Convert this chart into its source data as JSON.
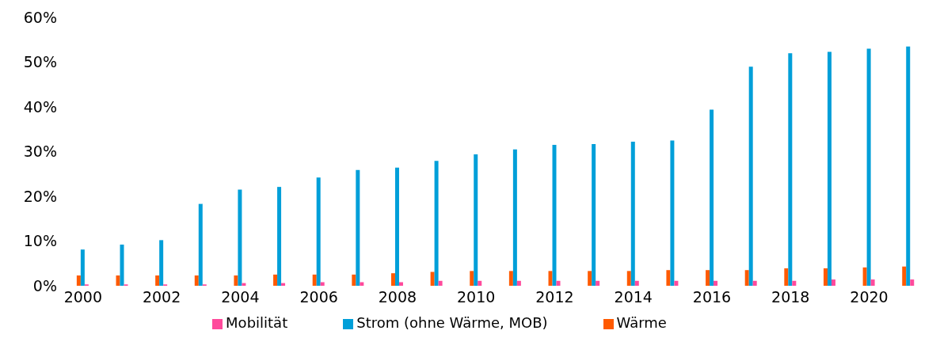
{
  "chart_data": {
    "type": "bar",
    "categories": [
      "2000",
      null,
      "2002",
      null,
      "2004",
      null,
      "2006",
      null,
      "2008",
      null,
      "2010",
      null,
      "2012",
      null,
      "2014",
      null,
      "2016",
      null,
      "2018",
      null,
      "2020",
      null
    ],
    "series": [
      {
        "name": "Wärme",
        "color": "#ff5a00",
        "values": [
          2.3,
          2.3,
          2.3,
          2.3,
          2.3,
          2.5,
          2.5,
          2.5,
          2.8,
          3.1,
          3.3,
          3.3,
          3.3,
          3.3,
          3.3,
          3.5,
          3.5,
          3.5,
          3.9,
          3.9,
          4.1,
          4.3
        ]
      },
      {
        "name": "Strom (ohne Wärme, MOB)",
        "color": "#009fd9",
        "values": [
          8.1,
          9.2,
          10.2,
          18.3,
          21.5,
          22.1,
          24.2,
          25.9,
          26.4,
          27.9,
          29.4,
          30.5,
          31.5,
          31.7,
          32.2,
          32.5,
          39.4,
          49.0,
          52.0,
          52.3,
          53.0,
          53.5
        ]
      },
      {
        "name": "Mobilität",
        "color": "#ff4a9c",
        "values": [
          0.3,
          0.3,
          0.3,
          0.3,
          0.6,
          0.6,
          0.8,
          0.8,
          0.8,
          1.1,
          1.1,
          1.1,
          1.1,
          1.1,
          1.1,
          1.1,
          1.1,
          1.1,
          1.1,
          1.4,
          1.4,
          1.4
        ]
      }
    ],
    "ylim": [
      0,
      60
    ],
    "yticks": [
      {
        "value": 0,
        "label": "0%"
      },
      {
        "value": 10,
        "label": "10%"
      },
      {
        "value": 20,
        "label": "20%"
      },
      {
        "value": 30,
        "label": "30%"
      },
      {
        "value": 40,
        "label": "40%"
      },
      {
        "value": 50,
        "label": "50%"
      },
      {
        "value": 60,
        "label": "60%"
      }
    ],
    "grid": false,
    "legend": "bottom"
  }
}
